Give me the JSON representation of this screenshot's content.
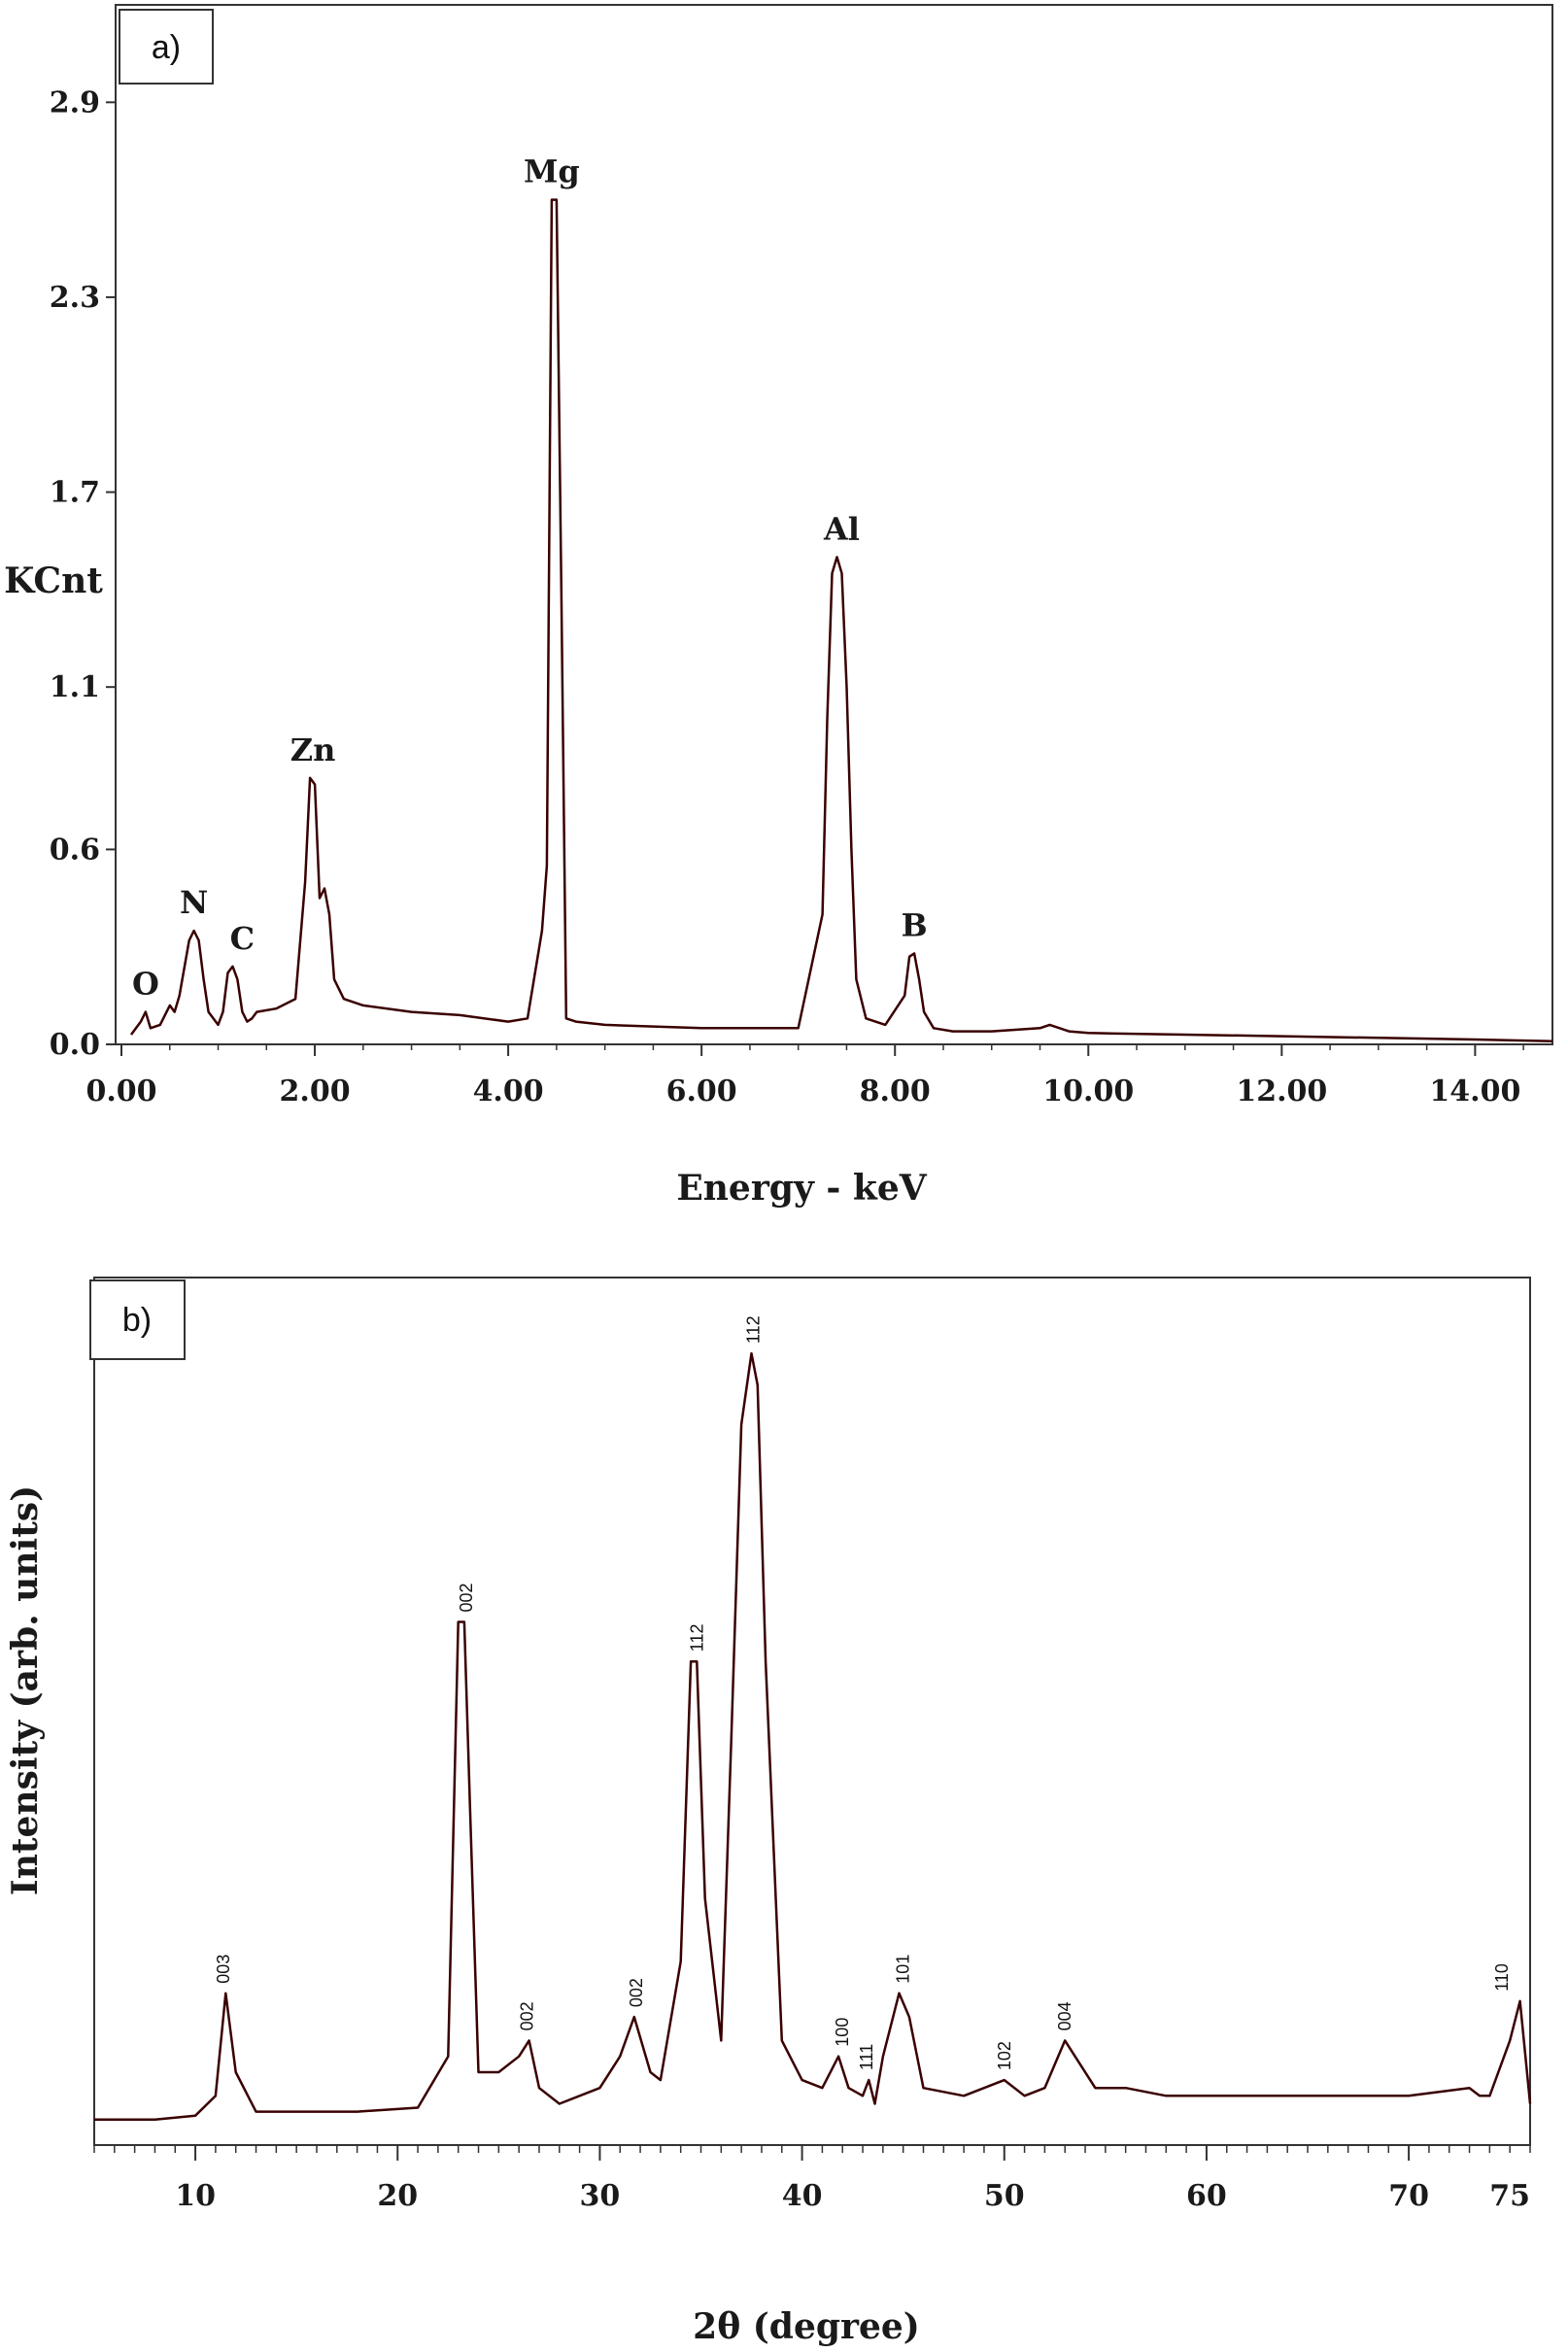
{
  "chart_data": [
    {
      "type": "line",
      "panel_label": "a)",
      "xlabel": "Energy - keV",
      "ylabel": "KCnt",
      "xlim": [
        0,
        14.8
      ],
      "ylim": [
        0,
        3.2
      ],
      "x_ticks": [
        "0.00",
        "2.00",
        "4.00",
        "6.00",
        "8.00",
        "10.00",
        "12.00",
        "14.00"
      ],
      "y_ticks": [
        "0.0",
        "0.6",
        "1.1",
        "1.7",
        "2.3",
        "2.9"
      ],
      "grid": false,
      "series": [
        {
          "color": "#3a0000",
          "x": [
            0.1,
            0.2,
            0.25,
            0.3,
            0.4,
            0.5,
            0.55,
            0.6,
            0.7,
            0.75,
            0.8,
            0.85,
            0.9,
            1.0,
            1.05,
            1.1,
            1.15,
            1.2,
            1.25,
            1.3,
            1.35,
            1.4,
            1.6,
            1.8,
            1.9,
            1.95,
            2.0,
            2.05,
            2.1,
            2.15,
            2.2,
            2.3,
            2.5,
            3.0,
            3.5,
            4.0,
            4.2,
            4.35,
            4.4,
            4.45,
            4.5,
            4.55,
            4.6,
            4.7,
            5.0,
            6.0,
            7.0,
            7.25,
            7.3,
            7.35,
            7.4,
            7.45,
            7.5,
            7.55,
            7.6,
            7.7,
            7.9,
            8.1,
            8.15,
            8.2,
            8.25,
            8.3,
            8.4,
            8.6,
            9.0,
            9.5,
            9.6,
            9.8,
            10.0,
            11.0,
            12.0,
            13.0,
            14.0,
            14.8
          ],
          "y": [
            0.03,
            0.07,
            0.1,
            0.05,
            0.06,
            0.12,
            0.1,
            0.15,
            0.32,
            0.35,
            0.32,
            0.2,
            0.1,
            0.06,
            0.1,
            0.22,
            0.24,
            0.2,
            0.1,
            0.07,
            0.08,
            0.1,
            0.11,
            0.14,
            0.5,
            0.82,
            0.8,
            0.45,
            0.48,
            0.4,
            0.2,
            0.14,
            0.12,
            0.1,
            0.09,
            0.07,
            0.08,
            0.35,
            0.55,
            2.6,
            2.6,
            1.4,
            0.08,
            0.07,
            0.06,
            0.05,
            0.05,
            0.4,
            1.0,
            1.45,
            1.5,
            1.45,
            1.1,
            0.6,
            0.2,
            0.08,
            0.06,
            0.15,
            0.27,
            0.28,
            0.2,
            0.1,
            0.05,
            0.04,
            0.04,
            0.05,
            0.06,
            0.04,
            0.035,
            0.03,
            0.025,
            0.02,
            0.015,
            0.01
          ]
        }
      ],
      "annotations": [
        {
          "text": "O",
          "x": 0.25,
          "y": 0.1
        },
        {
          "text": "N",
          "x": 0.75,
          "y": 0.35
        },
        {
          "text": "C",
          "x": 1.25,
          "y": 0.24
        },
        {
          "text": "Zn",
          "x": 1.98,
          "y": 0.82
        },
        {
          "text": "Mg",
          "x": 4.45,
          "y": 2.6
        },
        {
          "text": "Al",
          "x": 7.45,
          "y": 1.5
        },
        {
          "text": "B",
          "x": 8.2,
          "y": 0.28
        }
      ]
    },
    {
      "type": "line",
      "panel_label": "b)",
      "xlabel": "2θ (degree)",
      "ylabel": "Intensity (arb. units)",
      "xlim": [
        5,
        76
      ],
      "ylim": [
        0,
        100
      ],
      "x_ticks": [
        10,
        20,
        30,
        40,
        50,
        60,
        70,
        75
      ],
      "grid": false,
      "series": [
        {
          "color": "#3a0000",
          "x": [
            5,
            8,
            10,
            11,
            11.5,
            12,
            13,
            15,
            18,
            21,
            22.5,
            23,
            23.3,
            23.6,
            24,
            25,
            26,
            26.5,
            27,
            28,
            30,
            31,
            31.7,
            32.5,
            33,
            34,
            34.5,
            34.8,
            35.2,
            36,
            36.5,
            37,
            37.5,
            37.8,
            38.2,
            39,
            40,
            41,
            41.8,
            42.3,
            43,
            43.3,
            43.6,
            44,
            44.8,
            45.3,
            46,
            48,
            50,
            51,
            52,
            53,
            53.5,
            54.5,
            56,
            58,
            60,
            63,
            65,
            70,
            73,
            73.5,
            74,
            75,
            75.5,
            76
          ],
          "y": [
            2,
            2,
            2.5,
            5,
            18,
            8,
            3,
            3,
            3,
            3.5,
            10,
            65,
            65,
            40,
            8,
            8,
            10,
            12,
            6,
            4,
            6,
            10,
            15,
            8,
            7,
            22,
            60,
            60,
            30,
            12,
            50,
            90,
            99,
            95,
            60,
            12,
            7,
            6,
            10,
            6,
            5,
            7,
            4,
            10,
            18,
            15,
            6,
            5,
            7,
            5,
            6,
            12,
            10,
            6,
            6,
            5,
            5,
            5,
            5,
            5,
            6,
            5,
            5,
            12,
            17,
            4
          ]
        }
      ],
      "annotations": [
        {
          "text": "003",
          "x": 11.4,
          "y": 18
        },
        {
          "text": "002",
          "x": 23.4,
          "y": 65
        },
        {
          "text": "002",
          "x": 26.4,
          "y": 12
        },
        {
          "text": "002",
          "x": 31.8,
          "y": 15
        },
        {
          "text": "112",
          "x": 34.8,
          "y": 60
        },
        {
          "text": "112",
          "x": 37.6,
          "y": 99
        },
        {
          "text": "100",
          "x": 42,
          "y": 10
        },
        {
          "text": "111",
          "x": 43.2,
          "y": 7
        },
        {
          "text": "101",
          "x": 45,
          "y": 18
        },
        {
          "text": "102",
          "x": 50,
          "y": 7
        },
        {
          "text": "004",
          "x": 53,
          "y": 12
        },
        {
          "text": "110",
          "x": 74.6,
          "y": 17
        }
      ]
    }
  ]
}
